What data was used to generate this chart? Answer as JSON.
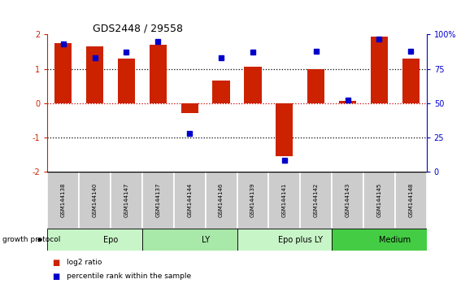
{
  "title": "GDS2448 / 29558",
  "samples": [
    "GSM144138",
    "GSM144140",
    "GSM144147",
    "GSM144137",
    "GSM144144",
    "GSM144146",
    "GSM144139",
    "GSM144141",
    "GSM144142",
    "GSM144143",
    "GSM144145",
    "GSM144148"
  ],
  "log2_ratio": [
    1.75,
    1.65,
    1.3,
    1.7,
    -0.3,
    0.65,
    1.05,
    -1.55,
    1.0,
    0.05,
    1.95,
    1.3
  ],
  "percentile_rank": [
    93,
    83,
    87,
    95,
    28,
    83,
    87,
    8,
    88,
    52,
    97,
    88
  ],
  "groups": [
    {
      "label": "Epo",
      "start": 0,
      "end": 3,
      "color": "#c8f5c8"
    },
    {
      "label": "LY",
      "start": 3,
      "end": 6,
      "color": "#a8e8a8"
    },
    {
      "label": "Epo plus LY",
      "start": 6,
      "end": 9,
      "color": "#c8f5c8"
    },
    {
      "label": "Medium",
      "start": 9,
      "end": 12,
      "color": "#44cc44"
    }
  ],
  "bar_color": "#cc2200",
  "dot_color": "#0000cc",
  "ylim_left": [
    -2,
    2
  ],
  "ylim_right": [
    0,
    100
  ],
  "yticks_left": [
    -2,
    -1,
    0,
    1,
    2
  ],
  "yticks_right": [
    0,
    25,
    50,
    75,
    100
  ],
  "ytick_labels_right": [
    "0",
    "25",
    "50",
    "75",
    "100%"
  ],
  "hlines": [
    -1,
    0,
    1
  ],
  "legend_log2": "log2 ratio",
  "legend_pct": "percentile rank within the sample",
  "growth_protocol_label": "growth protocol"
}
